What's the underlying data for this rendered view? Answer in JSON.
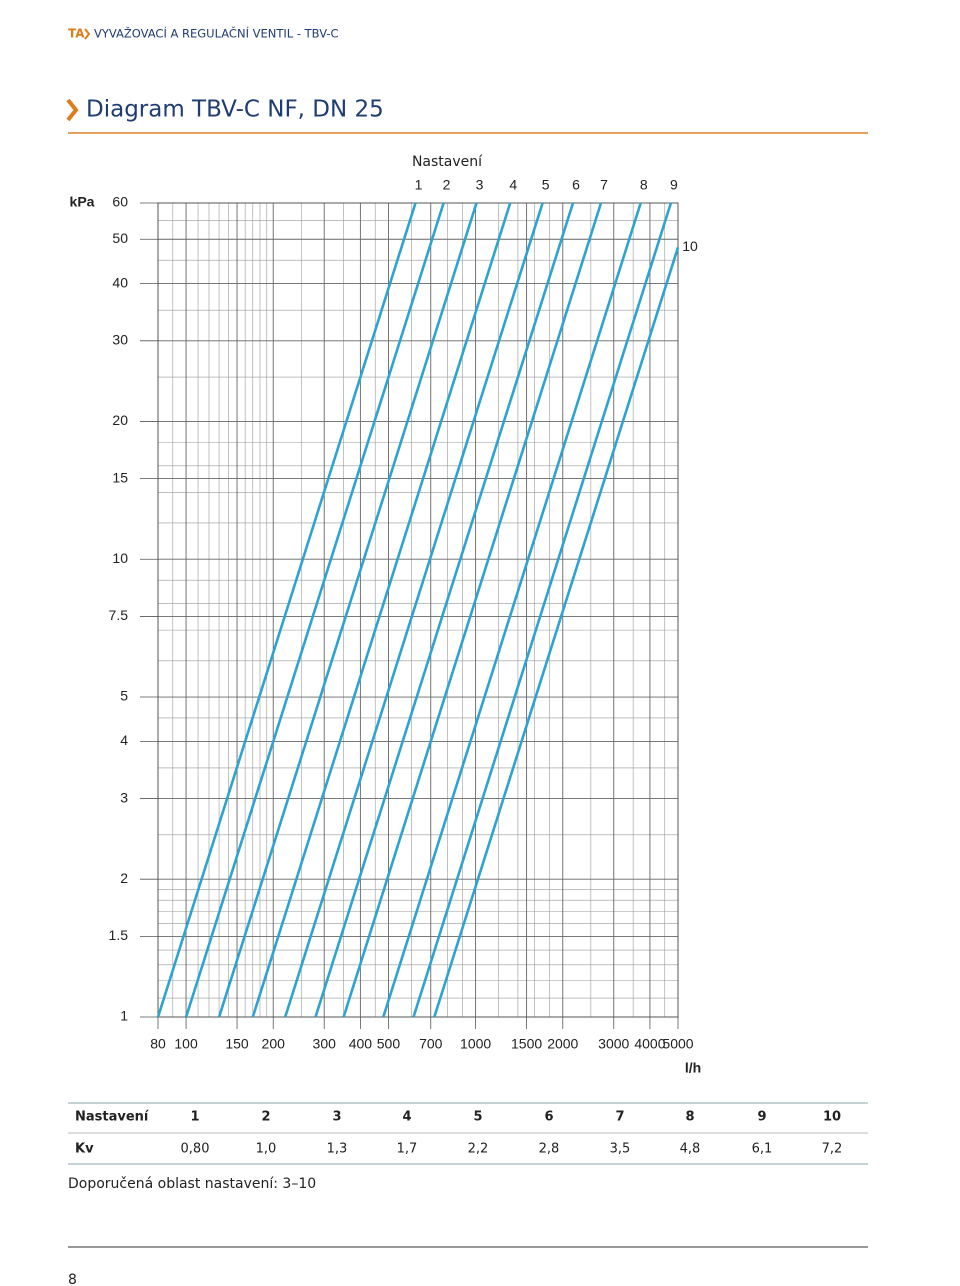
{
  "header": {
    "brand": "TA",
    "text": "VYVAŽOVACÍ A REGULAČNÍ VENTIL - TBV-C"
  },
  "title": "Diagram TBV-C NF, DN 25",
  "chart_data": {
    "type": "line",
    "ylabel": "kPa",
    "xlabel": "l/h",
    "legend_title": "Nastavení",
    "log_x": true,
    "log_y": true,
    "grid": true,
    "color": "#2ea3cf",
    "xlim": [
      80,
      5000
    ],
    "ylim": [
      1,
      60
    ],
    "xticks": [
      80,
      100,
      150,
      200,
      300,
      400,
      500,
      700,
      1000,
      1500,
      2000,
      3000,
      4000,
      5000
    ],
    "yticks": [
      1,
      {
        "value": 1.5,
        "label": "1.5"
      },
      2,
      3,
      4,
      5,
      {
        "value": 7.5,
        "label": "7.5"
      },
      10,
      15,
      20,
      30,
      40,
      50,
      60
    ],
    "xminorticks": [
      90,
      110,
      120,
      130,
      140,
      160,
      170,
      180,
      190,
      250,
      350,
      450,
      600,
      800,
      900,
      1200,
      1400,
      1600,
      1800,
      2500,
      3500,
      4500
    ],
    "yminorticks": [
      1.1,
      1.2,
      1.3,
      1.4,
      1.6,
      1.7,
      1.8,
      1.9,
      2.5,
      3.5,
      4.5,
      6,
      7,
      8,
      9,
      12,
      14,
      16,
      18,
      25,
      35,
      45,
      55
    ],
    "series": [
      {
        "name": "1",
        "x": [
          80,
          620
        ],
        "values": [
          1,
          60
        ]
      },
      {
        "name": "2",
        "x": [
          100,
          775
        ],
        "values": [
          1,
          60
        ]
      },
      {
        "name": "3",
        "x": [
          130,
          1007
        ],
        "values": [
          1,
          60
        ]
      },
      {
        "name": "4",
        "x": [
          170,
          1317
        ],
        "values": [
          1,
          60
        ]
      },
      {
        "name": "5",
        "x": [
          220,
          1704
        ],
        "values": [
          1,
          60
        ]
      },
      {
        "name": "6",
        "x": [
          280,
          2169
        ],
        "values": [
          1,
          60
        ]
      },
      {
        "name": "7",
        "x": [
          350,
          2711
        ],
        "values": [
          1,
          60
        ]
      },
      {
        "name": "8",
        "x": [
          480,
          3718
        ],
        "values": [
          1,
          60
        ]
      },
      {
        "name": "9",
        "x": [
          610,
          4725
        ],
        "values": [
          1,
          60
        ]
      },
      {
        "name": "10",
        "x": [
          720,
          5000
        ],
        "values": [
          1,
          48
        ]
      }
    ]
  },
  "table": {
    "rows": [
      [
        "Nastavení",
        "1",
        "2",
        "3",
        "4",
        "5",
        "6",
        "7",
        "8",
        "9",
        "10"
      ],
      [
        "Kv",
        "0,80",
        "1,0",
        "1,3",
        "1,7",
        "2,2",
        "2,8",
        "3,5",
        "4,8",
        "6,1",
        "7,2"
      ]
    ]
  },
  "note": "Doporučená oblast nastavení: 3–10",
  "page_number": "8"
}
